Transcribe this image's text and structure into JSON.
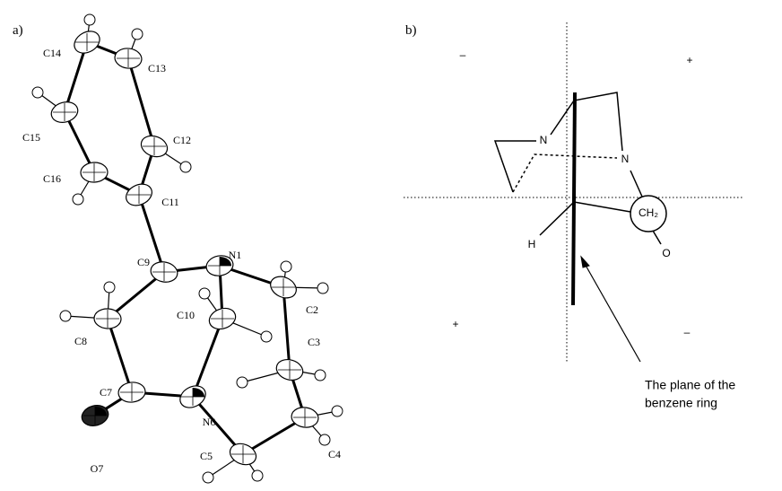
{
  "panels": [
    {
      "label": "a)",
      "atoms": [
        "C14",
        "C13",
        "C15",
        "C12",
        "C16",
        "C11",
        "C9",
        "N1",
        "C2",
        "C8",
        "C10",
        "C3",
        "C7",
        "N6",
        "C4",
        "O7",
        "C5"
      ]
    },
    {
      "label": "b)",
      "signs": [
        "–",
        "+",
        "+",
        "–"
      ],
      "atoms": [
        "N",
        "N",
        "CH₂",
        "H",
        "O"
      ],
      "annotation": [
        "The plane of the",
        "benzene ring"
      ]
    }
  ]
}
